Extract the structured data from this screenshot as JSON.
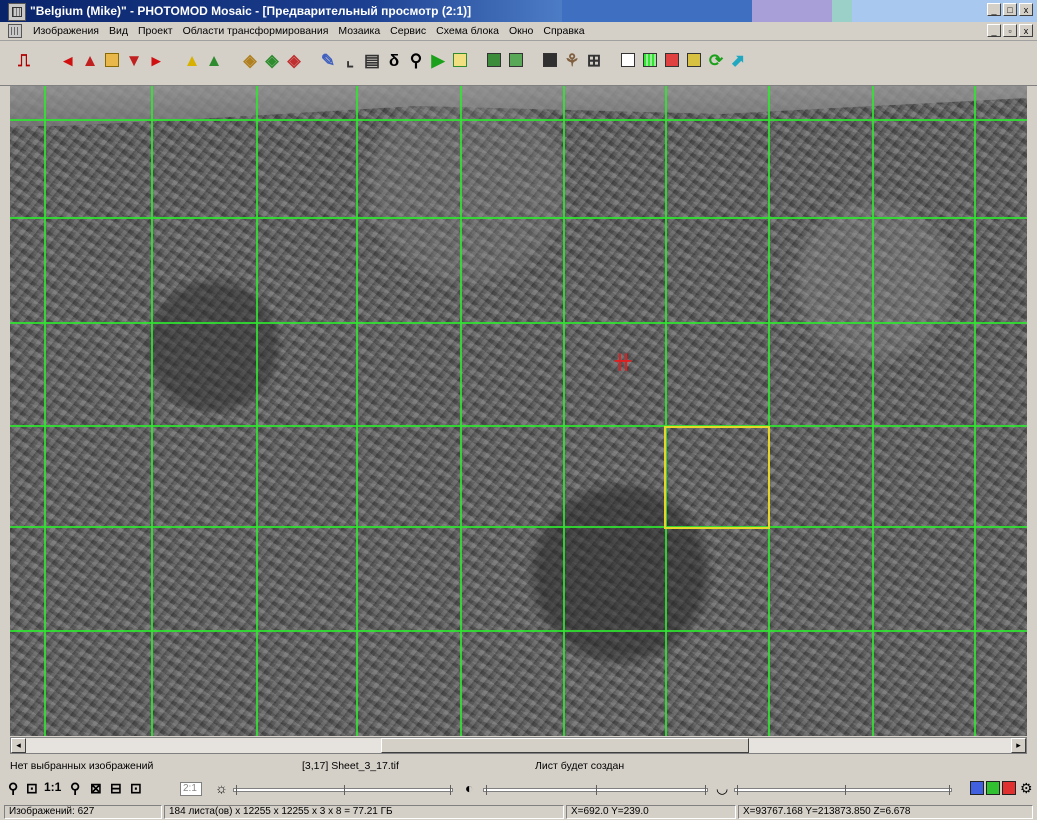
{
  "window": {
    "title": "\"Belgium (Mike)\" - PHOTOMOD Mosaic - [Предварительный просмотр (2:1)]",
    "controls": [
      "minimize",
      "maximize",
      "close"
    ]
  },
  "menu": {
    "items": [
      "Изображения",
      "Вид",
      "Проект",
      "Области трансформирования",
      "Мозаика",
      "Сервис",
      "Схема блока",
      "Окно",
      "Справка"
    ]
  },
  "toolbar": {
    "icons": [
      "exit-icon",
      "arrow-left-icon",
      "image-left-icon",
      "image-frame-icon",
      "image-right-icon",
      "arrow-right-icon",
      "triangle-yellow-icon",
      "triangle-green-icon",
      "layers-1-icon",
      "layers-2-icon",
      "layers-3-icon",
      "magic-icon",
      "corner-icon",
      "table-icon",
      "delta-icon",
      "zoom-icon",
      "play-icon",
      "sheet-icon",
      "grid-green-icon",
      "grid-green-2-icon",
      "dark-panel-icon",
      "palette-icon",
      "grid4-icon",
      "doc-icon",
      "green-grid-icon",
      "red-square-icon",
      "yellow-square-icon",
      "cycle-icon",
      "cyan-arrow-icon"
    ]
  },
  "map": {
    "grid_color": "#2ee82e",
    "selected_sheet_color": "#e5d72a",
    "cursor_color": "#e02020",
    "cursor_glyph": "卄"
  },
  "info": {
    "selection": "Нет выбранных изображений",
    "sheet": "[3,17] Sheet_3_17.tif",
    "sheet_status": "Лист будет создан"
  },
  "controls": {
    "zoom_value": "2:1",
    "zoom_one": "1:1"
  },
  "status": {
    "images": "Изображений: 627",
    "sheets_info": "184 листа(ов) x 12255 x 12255 x 3 x 8 = 77.21 ГБ",
    "pixel_coords": "X=692.0 Y=239.0",
    "world_coords": "X=93767.168 Y=213873.850 Z=6.678"
  }
}
